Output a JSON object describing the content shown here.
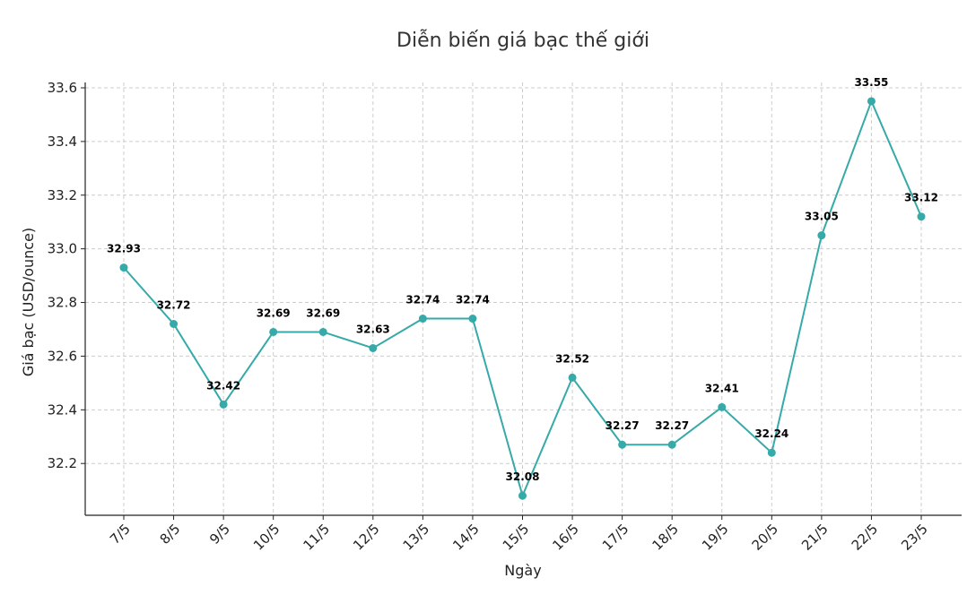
{
  "chart_data": {
    "type": "line",
    "title": "Diễn biến giá bạc thế giới",
    "xlabel": "Ngày",
    "ylabel": "Giá bạc (USD/ounce)",
    "categories": [
      "7/5",
      "8/5",
      "9/5",
      "10/5",
      "11/5",
      "12/5",
      "13/5",
      "14/5",
      "15/5",
      "16/5",
      "17/5",
      "18/5",
      "19/5",
      "20/5",
      "21/5",
      "22/5",
      "23/5"
    ],
    "series": [
      {
        "values": [
          32.93,
          32.72,
          32.42,
          32.69,
          32.69,
          32.63,
          32.74,
          32.74,
          32.08,
          32.52,
          32.27,
          32.27,
          32.41,
          32.24,
          33.05,
          33.55,
          33.12
        ],
        "labels": [
          "32.93",
          "32.72",
          "32.42",
          "32.69",
          "32.69",
          "32.63",
          "32.74",
          "32.74",
          "32.08",
          "32.52",
          "32.27",
          "32.27",
          "32.41",
          "32.24",
          "33.05",
          "33.55",
          "33.12"
        ],
        "color": "#36aaa8"
      }
    ],
    "yticks": [
      "32.2",
      "32.4",
      "32.6",
      "32.8",
      "33.0",
      "33.2",
      "33.4",
      "33.6"
    ],
    "ylim": [
      32.007,
      33.62
    ],
    "grid": true,
    "legend": false
  }
}
